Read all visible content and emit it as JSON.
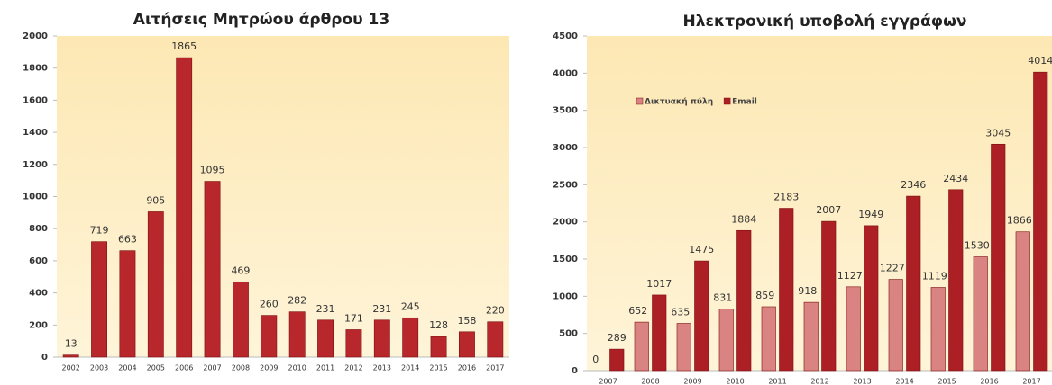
{
  "chart_data": [
    {
      "type": "bar",
      "title": "Αιτήσεις Μητρώου άρθρου 13",
      "categories": [
        "2002",
        "2003",
        "2004",
        "2005",
        "2006",
        "2007",
        "2008",
        "2009",
        "2010",
        "2011",
        "2012",
        "2013",
        "2014",
        "2015",
        "2016",
        "2017"
      ],
      "values": [
        13,
        719,
        663,
        905,
        1865,
        1095,
        469,
        260,
        282,
        231,
        171,
        231,
        245,
        128,
        158,
        220
      ],
      "color": "#b8272b",
      "ylim": [
        0,
        2000
      ],
      "yticks": [
        0,
        200,
        400,
        600,
        800,
        1000,
        1200,
        1400,
        1600,
        1800,
        2000
      ]
    },
    {
      "type": "bar",
      "title": "Ηλεκτρονική υποβολή εγγράφων",
      "categories": [
        "2007",
        "2008",
        "2009",
        "2010",
        "2011",
        "2012",
        "2013",
        "2014",
        "2015",
        "2016",
        "2017"
      ],
      "series": [
        {
          "name": "Δικτυακή πύλη",
          "color": "#d98383",
          "values": [
            0,
            652,
            635,
            831,
            859,
            918,
            1127,
            1227,
            1119,
            1530,
            1866
          ]
        },
        {
          "name": "Email",
          "color": "#ac1f24",
          "values": [
            289,
            1017,
            1475,
            1884,
            2183,
            2007,
            1949,
            2346,
            2434,
            3045,
            4014
          ]
        }
      ],
      "ylim": [
        0,
        4500
      ],
      "yticks": [
        0,
        500,
        1000,
        1500,
        2000,
        2500,
        3000,
        3500,
        4000,
        4500
      ],
      "legend": "top-left"
    }
  ]
}
